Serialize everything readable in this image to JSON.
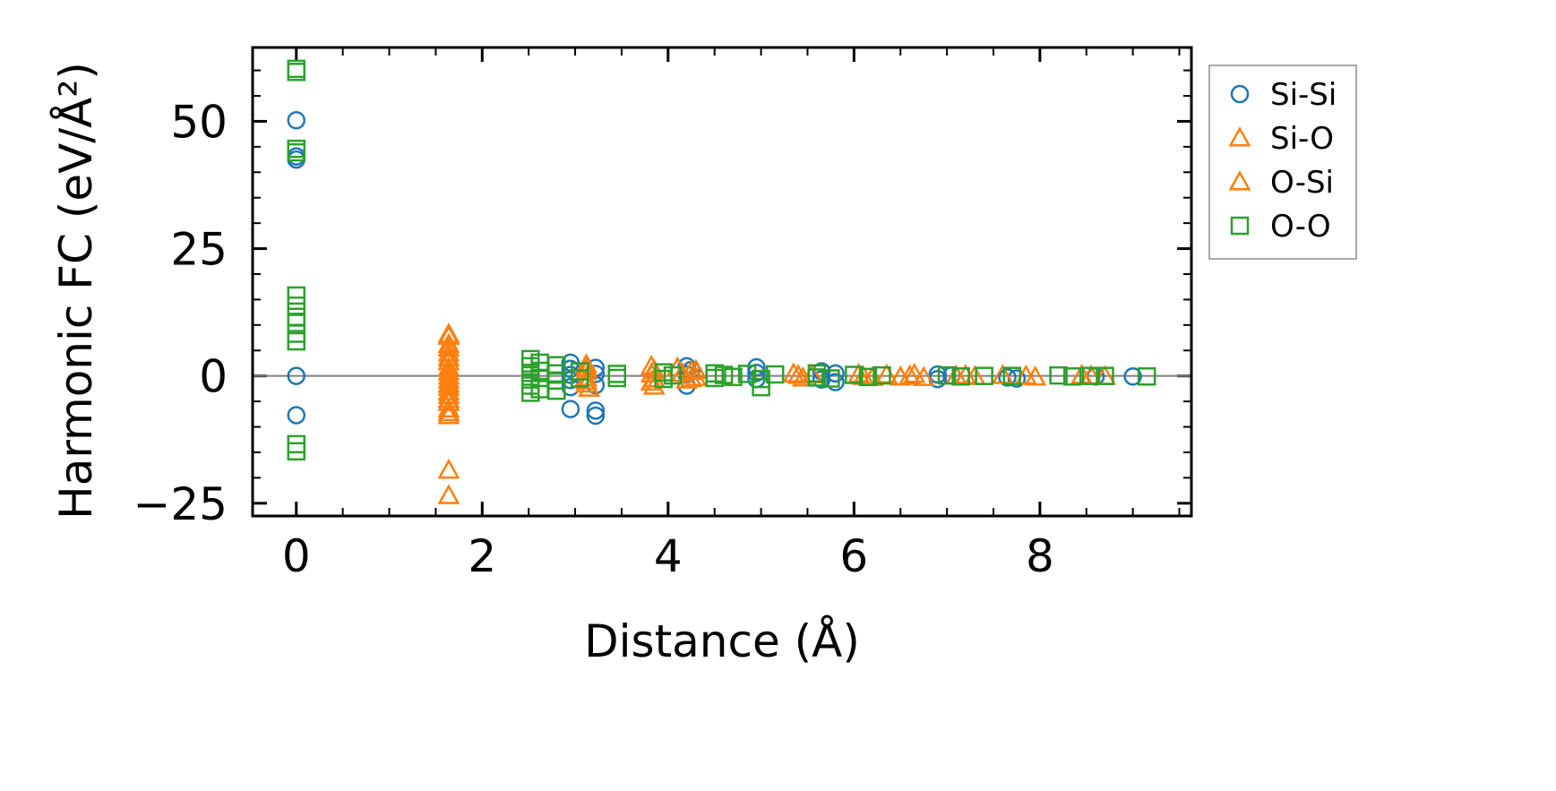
{
  "chart_data": {
    "type": "scatter",
    "title": "",
    "xlabel": "Distance (Å)",
    "ylabel": "Harmonic FC (eV/Å²)",
    "xlim": [
      -0.47,
      9.63
    ],
    "ylim": [
      -27.5,
      64.5
    ],
    "xticks": [
      0,
      2,
      4,
      6,
      8
    ],
    "xtick_labels": [
      "0",
      "2",
      "4",
      "6",
      "8"
    ],
    "yticks": [
      -25,
      0,
      25,
      50
    ],
    "ytick_labels": [
      "−25",
      "0",
      "25",
      "50"
    ],
    "zero_line": true,
    "grid": false,
    "legend_position": "outside-top-right",
    "series": [
      {
        "name": "Si-Si",
        "marker": "circle",
        "color": "#1f77b4",
        "points": [
          [
            0,
            50.2
          ],
          [
            0,
            43.1
          ],
          [
            0,
            42.5
          ],
          [
            0,
            0
          ],
          [
            0,
            -7.7
          ],
          [
            2.95,
            2.6
          ],
          [
            2.95,
            1.4
          ],
          [
            2.95,
            0.2
          ],
          [
            2.95,
            -0.8
          ],
          [
            2.95,
            -2.2
          ],
          [
            2.95,
            -6.5
          ],
          [
            3.22,
            1.6
          ],
          [
            3.22,
            0.4
          ],
          [
            3.22,
            -1.8
          ],
          [
            3.22,
            -6.8
          ],
          [
            3.22,
            -7.8
          ],
          [
            4.2,
            1.9
          ],
          [
            4.2,
            0.3
          ],
          [
            4.2,
            -1.9
          ],
          [
            4.25,
            1.2
          ],
          [
            4.95,
            1.7
          ],
          [
            4.95,
            0.6
          ],
          [
            4.95,
            -0.6
          ],
          [
            5.65,
            0.9
          ],
          [
            5.65,
            -0.7
          ],
          [
            5.8,
            0.5
          ],
          [
            5.8,
            -1.2
          ],
          [
            6.9,
            0.3
          ],
          [
            6.9,
            -0.6
          ],
          [
            7.05,
            0.1
          ],
          [
            7.65,
            -0.3
          ],
          [
            7.75,
            -0.5
          ],
          [
            8.6,
            -0.1
          ],
          [
            9.0,
            -0.1
          ]
        ]
      },
      {
        "name": "Si-O",
        "marker": "triangle",
        "color": "#ff7f0e",
        "points": [
          [
            1.64,
            7.8
          ],
          [
            1.64,
            6.2
          ],
          [
            1.64,
            4.5
          ],
          [
            1.64,
            2.8
          ],
          [
            1.64,
            0.8
          ],
          [
            1.64,
            -0.8
          ],
          [
            1.64,
            -2.2
          ],
          [
            1.64,
            -3.8
          ],
          [
            1.64,
            -5.2
          ],
          [
            1.64,
            -6.5
          ],
          [
            1.64,
            -7.8
          ],
          [
            1.64,
            -18.5
          ],
          [
            1.64,
            -23.5
          ],
          [
            3.12,
            2.2
          ],
          [
            3.12,
            0.9
          ],
          [
            3.12,
            -0.4
          ],
          [
            3.12,
            -1.6
          ],
          [
            3.15,
            -2.4
          ],
          [
            3.82,
            1.9
          ],
          [
            3.82,
            0.4
          ],
          [
            3.82,
            -1.2
          ],
          [
            3.85,
            -2.0
          ],
          [
            4.1,
            1.6
          ],
          [
            4.15,
            0.5
          ],
          [
            4.2,
            -0.8
          ],
          [
            4.3,
            1.1
          ],
          [
            4.3,
            -0.3
          ],
          [
            5.35,
            0.4
          ],
          [
            5.45,
            -0.4
          ],
          [
            5.55,
            0.2
          ],
          [
            6.05,
            0.3
          ],
          [
            6.2,
            -0.3
          ],
          [
            6.35,
            0.2
          ],
          [
            6.5,
            -0.2
          ],
          [
            6.65,
            0.3
          ],
          [
            6.75,
            -0.3
          ],
          [
            7.2,
            0.1
          ],
          [
            7.3,
            -0.1
          ],
          [
            7.6,
            0.1
          ],
          [
            7.95,
            -0.2
          ],
          [
            8.45,
            0.1
          ],
          [
            8.7,
            -0.1
          ]
        ]
      },
      {
        "name": "O-Si",
        "marker": "triangle",
        "color": "#ff7f0e",
        "points": [
          [
            1.64,
            8.2
          ],
          [
            1.64,
            5.5
          ],
          [
            1.64,
            3.6
          ],
          [
            1.64,
            1.6
          ],
          [
            1.64,
            0
          ],
          [
            1.64,
            -1.6
          ],
          [
            1.64,
            -3.1
          ],
          [
            1.64,
            -4.6
          ],
          [
            1.64,
            -7.2
          ],
          [
            3.12,
            1.5
          ],
          [
            3.12,
            -1.0
          ],
          [
            3.85,
            1.1
          ],
          [
            3.85,
            -0.6
          ],
          [
            4.25,
            0.9
          ],
          [
            4.25,
            -0.5
          ],
          [
            5.4,
            0.1
          ],
          [
            6.1,
            -0.1
          ],
          [
            6.6,
            0.0
          ],
          [
            7.1,
            0.0
          ],
          [
            7.85,
            0.0
          ],
          [
            8.55,
            0.0
          ]
        ]
      },
      {
        "name": "O-O",
        "marker": "square",
        "color": "#2ca02c",
        "points": [
          [
            0,
            60.3
          ],
          [
            0,
            59.7
          ],
          [
            0,
            44.6
          ],
          [
            0,
            43.9
          ],
          [
            0,
            15.8
          ],
          [
            0,
            13.8
          ],
          [
            0,
            11.6
          ],
          [
            0,
            10.4
          ],
          [
            0,
            8.3
          ],
          [
            0,
            6.8
          ],
          [
            0,
            -13.4
          ],
          [
            0,
            -14.8
          ],
          [
            2.52,
            3.3
          ],
          [
            2.52,
            1.9
          ],
          [
            2.52,
            0.6
          ],
          [
            2.52,
            -0.7
          ],
          [
            2.52,
            -1.9
          ],
          [
            2.52,
            -3.3
          ],
          [
            2.62,
            2.6
          ],
          [
            2.62,
            1.0
          ],
          [
            2.62,
            -0.4
          ],
          [
            2.62,
            -2.6
          ],
          [
            2.8,
            2.1
          ],
          [
            2.8,
            0.5
          ],
          [
            2.8,
            -0.9
          ],
          [
            2.8,
            -2.9
          ],
          [
            3.05,
            0.9
          ],
          [
            3.05,
            -0.5
          ],
          [
            3.45,
            0.4
          ],
          [
            3.45,
            -0.4
          ],
          [
            3.95,
            0.7
          ],
          [
            3.95,
            -0.6
          ],
          [
            4.05,
            0.1
          ],
          [
            4.5,
            0.5
          ],
          [
            4.5,
            -0.4
          ],
          [
            4.6,
            0.2
          ],
          [
            4.7,
            -0.2
          ],
          [
            4.85,
            0.4
          ],
          [
            5.0,
            -0.6
          ],
          [
            5.0,
            -2.2
          ],
          [
            5.15,
            0.3
          ],
          [
            5.6,
            0.5
          ],
          [
            5.6,
            -0.3
          ],
          [
            5.75,
            -0.5
          ],
          [
            6.0,
            0.2
          ],
          [
            6.15,
            -0.2
          ],
          [
            6.3,
            0.1
          ],
          [
            7.0,
            0.1
          ],
          [
            7.15,
            -0.1
          ],
          [
            7.4,
            0.0
          ],
          [
            7.7,
            0.0
          ],
          [
            8.2,
            0.1
          ],
          [
            8.35,
            -0.1
          ],
          [
            8.55,
            0.0
          ],
          [
            8.7,
            0.0
          ],
          [
            9.15,
            -0.1
          ]
        ]
      }
    ]
  }
}
